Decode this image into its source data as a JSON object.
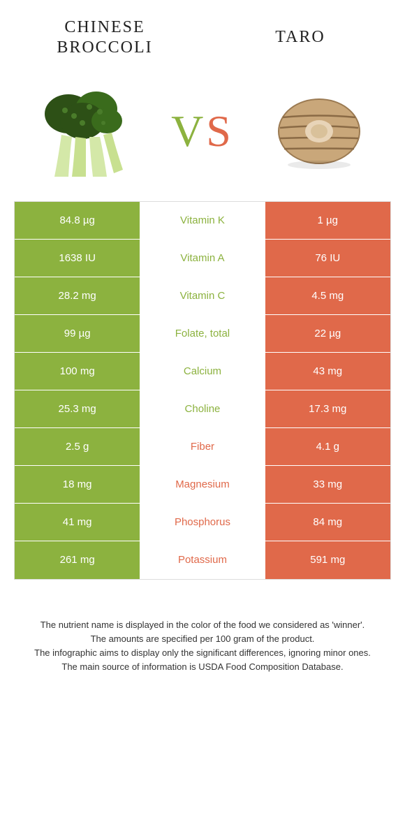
{
  "header": {
    "left_title": "Chinese broccoli",
    "right_title": "Taro",
    "vs_v": "V",
    "vs_s": "S"
  },
  "colors": {
    "left": "#8cb23f",
    "right": "#e0694a",
    "background": "#ffffff",
    "border": "#dddddd",
    "cell_text": "#ffffff"
  },
  "typography": {
    "title_fontsize": 24,
    "vs_fontsize": 64,
    "cell_fontsize": 15,
    "footer_fontsize": 13
  },
  "images": {
    "left_name": "broccoli-illustration",
    "right_name": "taro-illustration"
  },
  "table": {
    "rows": [
      {
        "left": "84.8 µg",
        "nutrient": "Vitamin K",
        "right": "1 µg",
        "winner": "left"
      },
      {
        "left": "1638 IU",
        "nutrient": "Vitamin A",
        "right": "76 IU",
        "winner": "left"
      },
      {
        "left": "28.2 mg",
        "nutrient": "Vitamin C",
        "right": "4.5 mg",
        "winner": "left"
      },
      {
        "left": "99 µg",
        "nutrient": "Folate, total",
        "right": "22 µg",
        "winner": "left"
      },
      {
        "left": "100 mg",
        "nutrient": "Calcium",
        "right": "43 mg",
        "winner": "left"
      },
      {
        "left": "25.3 mg",
        "nutrient": "Choline",
        "right": "17.3 mg",
        "winner": "left"
      },
      {
        "left": "2.5 g",
        "nutrient": "Fiber",
        "right": "4.1 g",
        "winner": "right"
      },
      {
        "left": "18 mg",
        "nutrient": "Magnesium",
        "right": "33 mg",
        "winner": "right"
      },
      {
        "left": "41 mg",
        "nutrient": "Phosphorus",
        "right": "84 mg",
        "winner": "right"
      },
      {
        "left": "261 mg",
        "nutrient": "Potassium",
        "right": "591 mg",
        "winner": "right"
      }
    ]
  },
  "footer": {
    "line1": "The nutrient name is displayed in the color of the food we considered as 'winner'.",
    "line2": "The amounts are specified per 100 gram of the product.",
    "line3": "The infographic aims to display only the significant differences, ignoring minor ones.",
    "line4": "The main source of information is USDA Food Composition Database."
  }
}
